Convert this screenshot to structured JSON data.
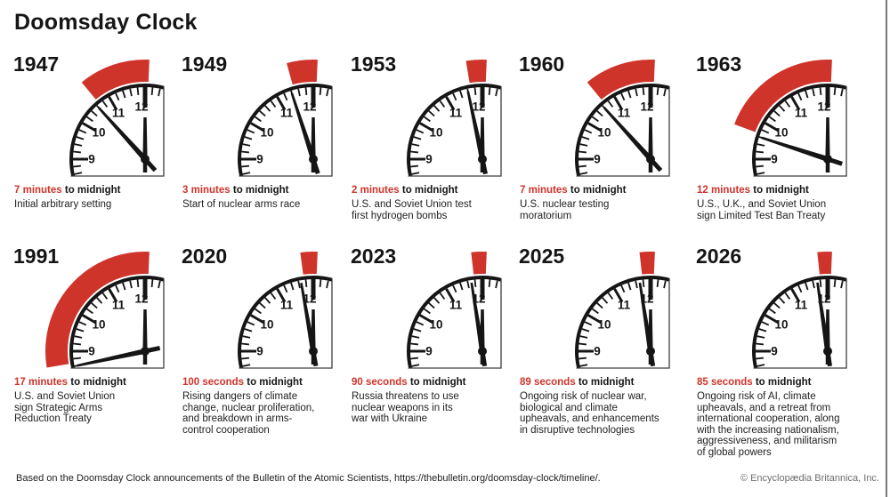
{
  "title": "Doomsday Clock",
  "labels": {
    "to_midnight_suffix": " to midnight"
  },
  "colors": {
    "accent_red": "#cf342b",
    "ink": "#151515",
    "body_text": "#212121",
    "card_border": "#3d3d3d",
    "muted_gray": "#6e6e6e"
  },
  "clocks": [
    {
      "year": "1947",
      "time_value": "7 minutes",
      "minutes_to_midnight": 7,
      "description": "Initial arbitrary setting"
    },
    {
      "year": "1949",
      "time_value": "3 minutes",
      "minutes_to_midnight": 3,
      "description": "Start of nuclear arms race"
    },
    {
      "year": "1953",
      "time_value": "2 minutes",
      "minutes_to_midnight": 2,
      "description": "U.S. and Soviet Union test\nfirst hydrogen bombs"
    },
    {
      "year": "1960",
      "time_value": "7 minutes",
      "minutes_to_midnight": 7,
      "description": "U.S. nuclear testing\nmoratorium"
    },
    {
      "year": "1963",
      "time_value": "12 minutes",
      "minutes_to_midnight": 12,
      "description": "U.S., U.K., and Soviet Union\nsign Limited Test Ban Treaty"
    },
    {
      "year": "1991",
      "time_value": "17 minutes",
      "minutes_to_midnight": 17,
      "description": "U.S. and Soviet Union\nsign Strategic Arms\nReduction Treaty"
    },
    {
      "year": "2020",
      "time_value": "100 seconds",
      "minutes_to_midnight": 1.667,
      "description": "Rising dangers of climate\nchange, nuclear proliferation,\nand breakdown in arms-\ncontrol cooperation"
    },
    {
      "year": "2023",
      "time_value": "90 seconds",
      "minutes_to_midnight": 1.5,
      "description": "Russia threatens to use\nnuclear weapons in its\nwar with Ukraine"
    },
    {
      "year": "2025",
      "time_value": "89 seconds",
      "minutes_to_midnight": 1.483,
      "description": "Ongoing risk of nuclear war,\nbiological and climate\nupheavals, and enhancements\nin disruptive technologies"
    },
    {
      "year": "2026",
      "time_value": "85 seconds",
      "minutes_to_midnight": 1.417,
      "description": "Ongoing risk of AI, climate\nupheavals, and a retreat from\ninternational cooperation, along\nwith the increasing nationalism,\naggressiveness, and militarism\nof global powers"
    }
  ],
  "footer": {
    "source": "Based on the Doomsday Clock announcements of the Bulletin of the Atomic Scientists, https://thebulletin.org/doomsday-clock/timeline/.",
    "copyright": "© Encyclopædia Britannica, Inc."
  }
}
